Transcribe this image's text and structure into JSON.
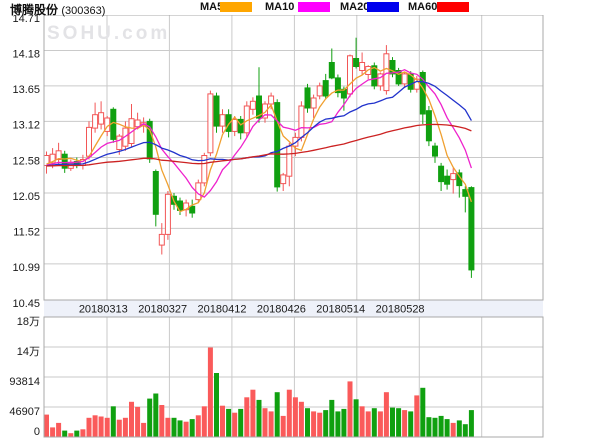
{
  "header": {
    "title": "博腾股份",
    "code": "(300363)",
    "legend": [
      {
        "label": "MA5",
        "color": "#ffa600"
      },
      {
        "label": "MA10",
        "color": "#ff00ff"
      },
      {
        "label": "MA20",
        "color": "#0000ee"
      },
      {
        "label": "MA60",
        "color": "#ff0000"
      }
    ]
  },
  "watermark": "SOHU.com",
  "chart_data": {
    "type": "candlestick",
    "title": "博腾股份 (300363) daily K-line with volume",
    "price_axis": {
      "tick_labels": [
        "14.71",
        "14.18",
        "13.65",
        "13.12",
        "12.58",
        "12.05",
        "11.52",
        "10.99",
        "10.45"
      ],
      "min": 10.45,
      "max": 14.71
    },
    "volume_axis": {
      "tick_labels": [
        "18万",
        "14万",
        "93814",
        "46907",
        "0"
      ],
      "tick_values": [
        187628,
        140721,
        93814,
        46907,
        0
      ],
      "max": 187628
    },
    "x_tick_labels": [
      "20180313",
      "20180327",
      "20180412",
      "20180426",
      "20180514",
      "20180528"
    ],
    "ma_periods": [
      5,
      10,
      20,
      60
    ],
    "ma_seed_price": 12.45,
    "legend_position": "top",
    "grid": true,
    "colors": {
      "up": "#f25656",
      "down": "#10a010",
      "vol_up": "#fa5a5a",
      "vol_down": "#10a010",
      "ma5": "#f0a030",
      "ma10": "#ee22cc",
      "ma20": "#2233cc",
      "ma60": "#cc2222",
      "grid": "#cacaca",
      "border": "#a8a8a8",
      "band_bg": "#eef1f9",
      "text": "#1a1a1a",
      "watermark": "#e3e3e6"
    },
    "candles_format": [
      "open",
      "high",
      "low",
      "close",
      "volume"
    ],
    "candles": [
      [
        12.46,
        12.67,
        12.34,
        12.61,
        35000
      ],
      [
        12.5,
        12.72,
        12.42,
        12.63,
        15000
      ],
      [
        12.55,
        12.8,
        12.48,
        12.68,
        22000
      ],
      [
        12.63,
        12.68,
        12.35,
        12.42,
        10000
      ],
      [
        12.42,
        12.55,
        12.38,
        12.5,
        6000
      ],
      [
        12.52,
        12.58,
        12.42,
        12.46,
        10000
      ],
      [
        12.46,
        12.62,
        12.4,
        12.55,
        12000
      ],
      [
        12.6,
        13.12,
        12.55,
        13.03,
        30000
      ],
      [
        13.02,
        13.4,
        12.95,
        13.22,
        34000
      ],
      [
        13.08,
        13.42,
        13.0,
        13.25,
        32000
      ],
      [
        12.97,
        13.2,
        12.9,
        13.17,
        30000
      ],
      [
        13.3,
        13.33,
        12.8,
        12.85,
        48000
      ],
      [
        12.7,
        12.93,
        12.62,
        12.9,
        27000
      ],
      [
        12.75,
        13.12,
        12.68,
        13.02,
        30000
      ],
      [
        12.79,
        13.38,
        12.73,
        13.16,
        55000
      ],
      [
        13.04,
        13.25,
        13.0,
        13.14,
        47000
      ],
      [
        13.05,
        13.18,
        12.95,
        13.1,
        22000
      ],
      [
        13.12,
        13.16,
        12.5,
        12.56,
        60000
      ],
      [
        12.37,
        12.4,
        11.55,
        11.73,
        68000
      ],
      [
        11.27,
        11.6,
        11.13,
        11.43,
        50000
      ],
      [
        11.43,
        12.08,
        11.35,
        12.03,
        30000
      ],
      [
        12.0,
        12.05,
        11.8,
        11.88,
        30000
      ],
      [
        11.93,
        11.98,
        11.72,
        11.79,
        26000
      ],
      [
        11.8,
        11.95,
        11.7,
        11.9,
        24000
      ],
      [
        11.85,
        11.95,
        11.68,
        11.75,
        28000
      ],
      [
        11.95,
        12.25,
        11.9,
        12.2,
        34000
      ],
      [
        12.2,
        12.65,
        12.15,
        12.61,
        48000
      ],
      [
        12.65,
        13.58,
        12.6,
        13.53,
        140000
      ],
      [
        13.5,
        13.55,
        12.95,
        13.05,
        100000
      ],
      [
        13.05,
        13.3,
        12.95,
        13.22,
        49000
      ],
      [
        13.22,
        13.3,
        12.88,
        12.97,
        44000
      ],
      [
        12.97,
        13.2,
        12.9,
        13.15,
        38000
      ],
      [
        13.15,
        13.2,
        12.85,
        12.95,
        44000
      ],
      [
        12.95,
        13.42,
        12.88,
        13.35,
        62000
      ],
      [
        13.3,
        13.48,
        13.22,
        13.42,
        74000
      ],
      [
        13.5,
        13.93,
        13.1,
        13.17,
        58000
      ],
      [
        13.17,
        13.42,
        13.1,
        13.38,
        45000
      ],
      [
        13.38,
        13.55,
        13.3,
        13.5,
        40000
      ],
      [
        13.4,
        13.45,
        12.07,
        12.14,
        70000
      ],
      [
        12.19,
        12.35,
        12.08,
        12.32,
        33000
      ],
      [
        12.3,
        12.8,
        12.15,
        12.75,
        74000
      ],
      [
        12.75,
        12.95,
        12.6,
        12.88,
        62000
      ],
      [
        12.88,
        13.42,
        12.82,
        13.35,
        55000
      ],
      [
        13.62,
        13.68,
        13.25,
        13.32,
        45000
      ],
      [
        13.32,
        13.52,
        13.17,
        13.47,
        40000
      ],
      [
        13.5,
        13.7,
        13.45,
        13.65,
        38000
      ],
      [
        13.73,
        13.83,
        13.45,
        13.5,
        42000
      ],
      [
        14.0,
        14.21,
        13.75,
        13.77,
        58000
      ],
      [
        13.77,
        13.82,
        13.48,
        13.55,
        40000
      ],
      [
        13.6,
        13.64,
        13.28,
        13.47,
        44000
      ],
      [
        13.53,
        14.12,
        13.48,
        14.1,
        87000
      ],
      [
        14.06,
        14.37,
        13.91,
        13.94,
        59000
      ],
      [
        13.88,
        14.15,
        13.82,
        14.0,
        48000
      ],
      [
        13.82,
        13.96,
        13.75,
        13.94,
        40000
      ],
      [
        13.95,
        14.0,
        13.6,
        13.65,
        45000
      ],
      [
        13.65,
        13.85,
        13.58,
        13.83,
        40000
      ],
      [
        13.58,
        14.26,
        13.52,
        14.13,
        70000
      ],
      [
        14.03,
        14.08,
        13.78,
        13.83,
        46000
      ],
      [
        13.88,
        13.92,
        13.65,
        13.68,
        45000
      ],
      [
        13.68,
        13.85,
        13.62,
        13.83,
        42000
      ],
      [
        13.83,
        13.87,
        13.55,
        13.6,
        40000
      ],
      [
        13.6,
        13.8,
        13.55,
        13.75,
        65000
      ],
      [
        13.85,
        13.88,
        13.08,
        13.23,
        77000
      ],
      [
        13.28,
        13.35,
        12.75,
        12.83,
        31000
      ],
      [
        12.75,
        12.8,
        12.5,
        12.6,
        30000
      ],
      [
        12.45,
        12.5,
        12.08,
        12.22,
        33000
      ],
      [
        12.3,
        12.4,
        12.1,
        12.18,
        28000
      ],
      [
        12.25,
        12.42,
        12.04,
        12.34,
        22000
      ],
      [
        12.35,
        12.4,
        11.98,
        12.16,
        26000
      ],
      [
        12.1,
        12.15,
        11.76,
        12.0,
        20000
      ],
      [
        12.13,
        12.15,
        10.78,
        10.9,
        42000
      ]
    ]
  }
}
